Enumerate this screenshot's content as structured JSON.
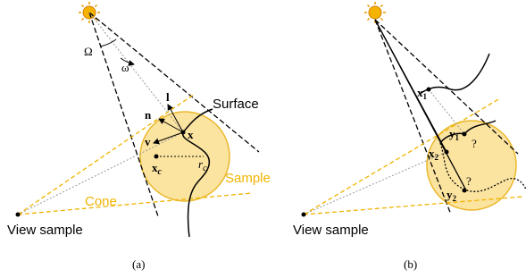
{
  "panel_a": {
    "omega_solid": "Ω",
    "omega": "ω",
    "l": "l",
    "n": "n",
    "v": "v",
    "x": "x",
    "surface": "Surface",
    "xc": {
      "base": "x",
      "sub": "c"
    },
    "rc": {
      "base": "r",
      "sub": "c"
    },
    "sample": "Sample",
    "cone": "Cone",
    "view_sample": "View sample",
    "caption": "(a)"
  },
  "panel_b": {
    "x1": {
      "base": "x",
      "sub": "1"
    },
    "y1": {
      "base": "y",
      "sub": "1"
    },
    "q1": "?",
    "x2": {
      "base": "x",
      "sub": "2"
    },
    "y2": {
      "base": "y",
      "sub": "2"
    },
    "q2": "?",
    "view_sample": "View sample",
    "caption": "(b)"
  }
}
